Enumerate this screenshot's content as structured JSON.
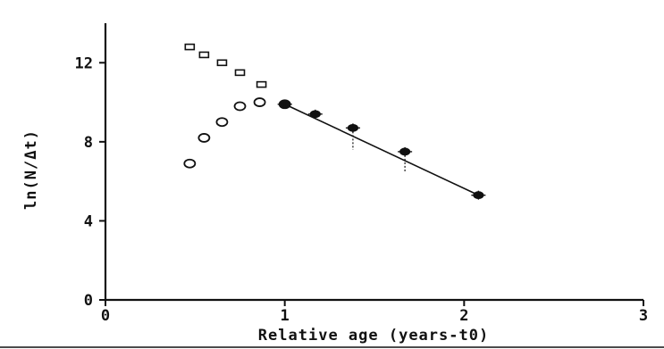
{
  "chart_data": {
    "type": "scatter",
    "title": "",
    "xlabel": "Relative age (years-t0)",
    "ylabel": "ln(N/Δt)",
    "xlim": [
      0,
      3
    ],
    "ylim": [
      0,
      14
    ],
    "x_ticks": [
      0,
      1,
      2,
      3
    ],
    "y_ticks": [
      0,
      4,
      8,
      12
    ],
    "x_tick_labels": [
      "0",
      "1",
      "2",
      "3"
    ],
    "y_tick_labels": [
      "0",
      "4",
      "8",
      "12"
    ],
    "grid": false,
    "legend": "none",
    "series": [
      {
        "marker": "square",
        "x": [
          0.47,
          0.55,
          0.65,
          0.75,
          0.87
        ],
        "y": [
          12.8,
          12.4,
          12.0,
          11.5,
          10.9
        ]
      },
      {
        "marker": "circle",
        "x": [
          0.47,
          0.55,
          0.65,
          0.75,
          0.86,
          1.0
        ],
        "y": [
          6.9,
          8.2,
          9.0,
          9.8,
          10.0,
          9.9
        ]
      },
      {
        "marker": "star",
        "x": [
          1.0,
          1.17,
          1.38,
          1.67,
          2.08
        ],
        "y": [
          9.9,
          9.4,
          8.7,
          7.5,
          5.3
        ]
      }
    ],
    "fit_line": {
      "x": [
        1.0,
        2.08
      ],
      "y": [
        9.9,
        5.3
      ]
    },
    "error_bars": [
      {
        "x": 1.38,
        "y_low": 7.6,
        "y_high": 8.7
      },
      {
        "x": 1.67,
        "y_low": 6.5,
        "y_high": 7.5
      }
    ]
  }
}
